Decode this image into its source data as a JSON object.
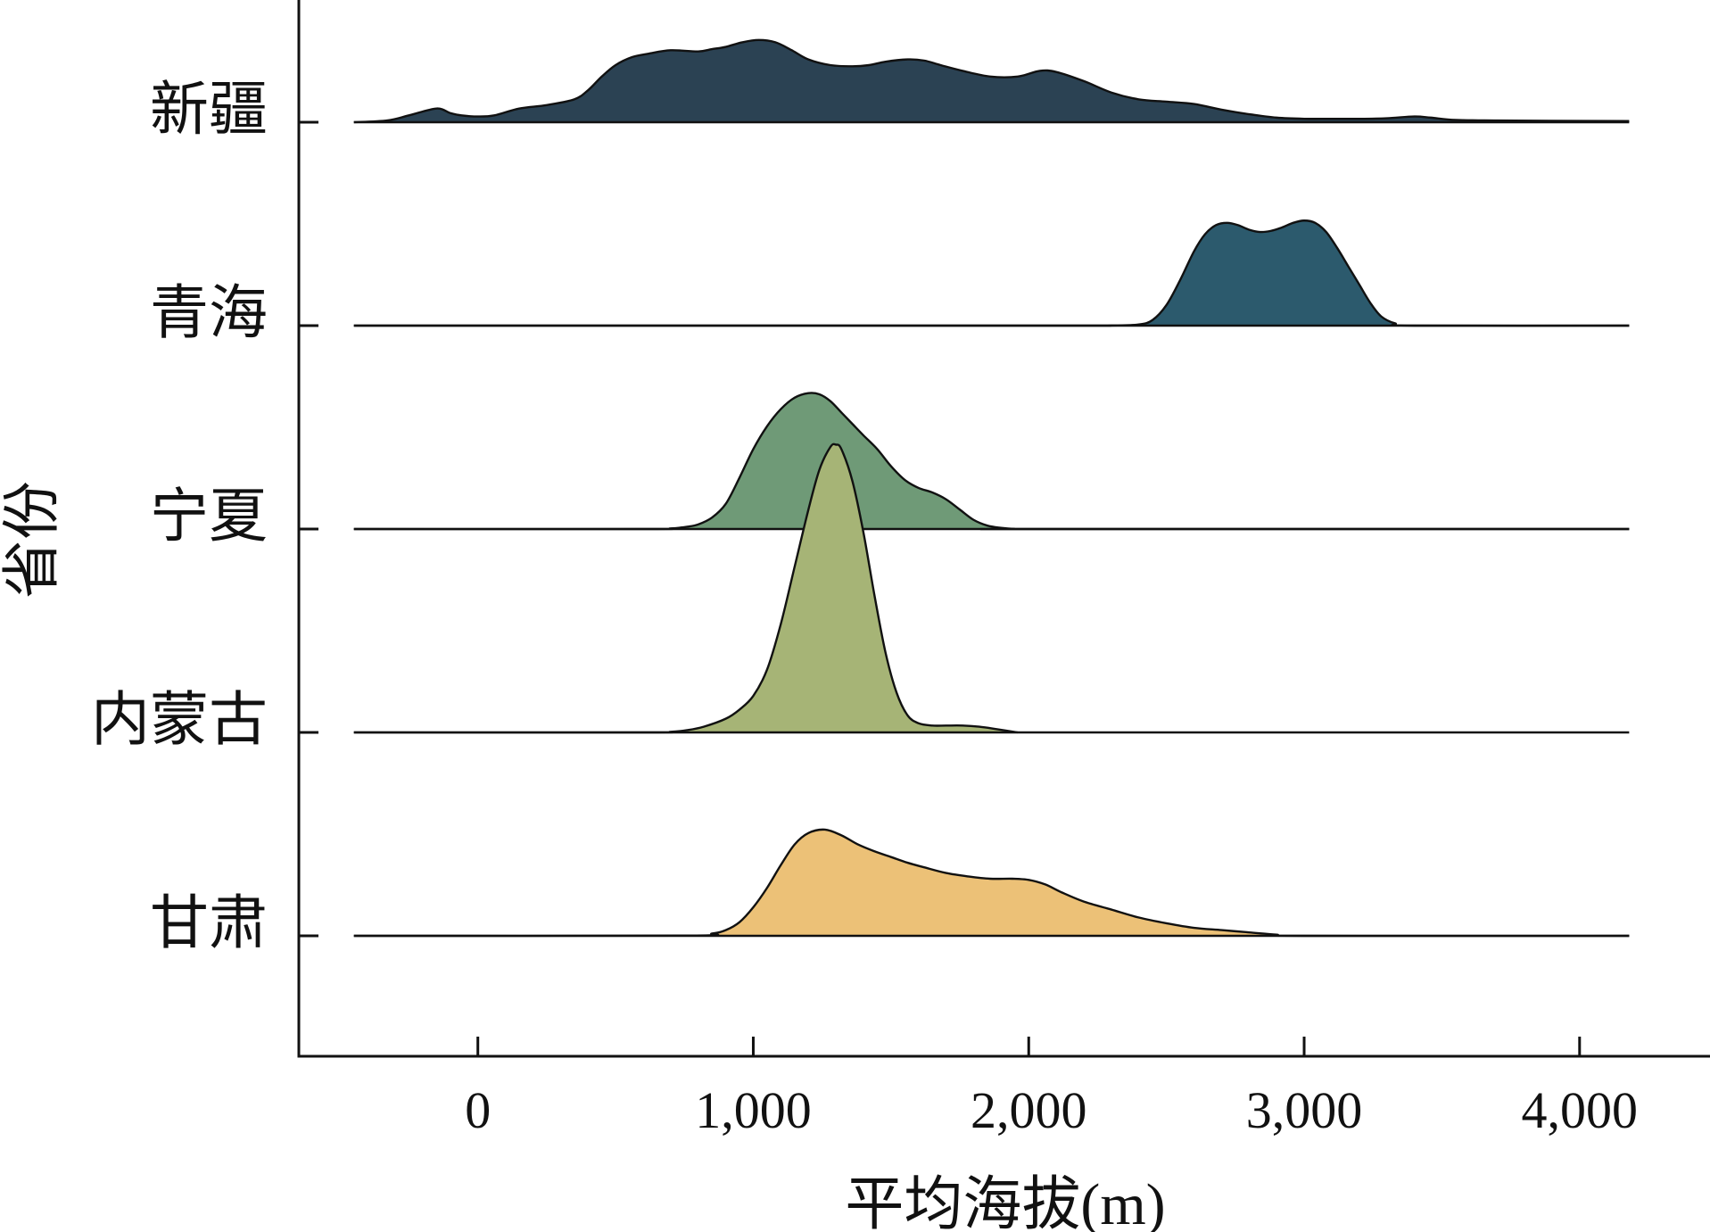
{
  "chart_data": {
    "type": "ridgeline",
    "title": "",
    "xlabel": "平均海拔(m)",
    "ylabel": "省份",
    "xlim": [
      -650,
      4480
    ],
    "xticks": [
      0,
      1000,
      2000,
      3000,
      4000
    ],
    "xtick_labels": [
      "0",
      "1,000",
      "2,000",
      "3,000",
      "4,000"
    ],
    "density_range": [
      -450,
      4180
    ],
    "overlap_scale": 1.0,
    "grid": false,
    "legend": "none",
    "categories": [
      "新疆",
      "青海",
      "宁夏",
      "内蒙古",
      "甘肃"
    ],
    "series": [
      {
        "name": "新疆",
        "color": "#2b4253",
        "x": [
          -450,
          -330,
          -250,
          -150,
          -100,
          -60,
          0,
          60,
          150,
          250,
          350,
          400,
          450,
          500,
          560,
          620,
          700,
          800,
          850,
          900,
          960,
          1020,
          1080,
          1140,
          1200,
          1280,
          1360,
          1420,
          1480,
          1560,
          1620,
          1680,
          1760,
          1860,
          1960,
          2040,
          2100,
          2200,
          2300,
          2400,
          2500,
          2600,
          2700,
          2800,
          2900,
          3000,
          3100,
          3200,
          3300,
          3400,
          3460,
          3550,
          3700,
          3900,
          4180
        ],
        "y": [
          0.0,
          0.015,
          0.06,
          0.12,
          0.08,
          0.06,
          0.05,
          0.06,
          0.12,
          0.15,
          0.2,
          0.28,
          0.4,
          0.5,
          0.57,
          0.6,
          0.63,
          0.62,
          0.64,
          0.66,
          0.7,
          0.72,
          0.7,
          0.63,
          0.55,
          0.5,
          0.49,
          0.5,
          0.53,
          0.55,
          0.54,
          0.5,
          0.45,
          0.4,
          0.4,
          0.45,
          0.44,
          0.36,
          0.26,
          0.2,
          0.18,
          0.16,
          0.11,
          0.07,
          0.04,
          0.03,
          0.03,
          0.03,
          0.035,
          0.05,
          0.04,
          0.02,
          0.015,
          0.012,
          0.01
        ]
      },
      {
        "name": "青海",
        "color": "#2c5a6d",
        "x": [
          -450,
          2000,
          2300,
          2400,
          2450,
          2500,
          2550,
          2600,
          2640,
          2680,
          2720,
          2760,
          2800,
          2840,
          2880,
          2920,
          2960,
          3000,
          3040,
          3080,
          3120,
          3160,
          3200,
          3240,
          3280,
          3330,
          3400,
          4180
        ],
        "y": [
          0.0,
          0.0,
          0.001,
          0.01,
          0.05,
          0.18,
          0.4,
          0.65,
          0.8,
          0.88,
          0.9,
          0.88,
          0.84,
          0.82,
          0.83,
          0.86,
          0.9,
          0.92,
          0.9,
          0.82,
          0.68,
          0.52,
          0.36,
          0.2,
          0.08,
          0.02,
          0.0,
          0.0
        ]
      },
      {
        "name": "宁夏",
        "color": "#6f9a77",
        "x": [
          -450,
          600,
          700,
          760,
          800,
          850,
          900,
          950,
          1000,
          1050,
          1100,
          1150,
          1200,
          1240,
          1280,
          1320,
          1360,
          1400,
          1450,
          1500,
          1550,
          1600,
          1650,
          1700,
          1750,
          1800,
          1850,
          1900,
          1950,
          2000,
          4180
        ],
        "y": [
          0.0,
          0.0,
          0.005,
          0.02,
          0.04,
          0.1,
          0.22,
          0.45,
          0.7,
          0.9,
          1.05,
          1.15,
          1.19,
          1.18,
          1.12,
          1.02,
          0.92,
          0.82,
          0.7,
          0.55,
          0.43,
          0.36,
          0.32,
          0.26,
          0.17,
          0.08,
          0.03,
          0.01,
          0.0,
          0.0,
          0.0
        ]
      },
      {
        "name": "内蒙古",
        "color": "#a6b476",
        "x": [
          -450,
          600,
          700,
          760,
          820,
          900,
          950,
          1000,
          1050,
          1100,
          1150,
          1200,
          1240,
          1280,
          1300,
          1320,
          1360,
          1400,
          1440,
          1480,
          1520,
          1560,
          1600,
          1650,
          1700,
          1760,
          1820,
          1880,
          1960
        ],
        "y": [
          0.0,
          0.0,
          0.005,
          0.02,
          0.05,
          0.12,
          0.2,
          0.32,
          0.55,
          0.95,
          1.45,
          1.95,
          2.3,
          2.5,
          2.52,
          2.48,
          2.2,
          1.75,
          1.2,
          0.7,
          0.35,
          0.15,
          0.08,
          0.06,
          0.06,
          0.06,
          0.05,
          0.03,
          0.0
        ]
      },
      {
        "name": "甘肃",
        "color": "#ecc177",
        "x": [
          -450,
          750,
          850,
          900,
          950,
          1000,
          1050,
          1100,
          1150,
          1200,
          1260,
          1320,
          1380,
          1440,
          1500,
          1560,
          1620,
          1700,
          1780,
          1860,
          1940,
          2000,
          2060,
          2120,
          2200,
          2300,
          2400,
          2500,
          2600,
          2700,
          2800,
          2900,
          3000,
          4180
        ],
        "y": [
          0.0,
          0.002,
          0.02,
          0.05,
          0.12,
          0.25,
          0.42,
          0.62,
          0.8,
          0.9,
          0.93,
          0.88,
          0.8,
          0.74,
          0.69,
          0.64,
          0.6,
          0.55,
          0.52,
          0.5,
          0.5,
          0.49,
          0.45,
          0.38,
          0.3,
          0.23,
          0.16,
          0.11,
          0.07,
          0.05,
          0.03,
          0.01,
          0.0,
          0.0
        ]
      }
    ]
  }
}
